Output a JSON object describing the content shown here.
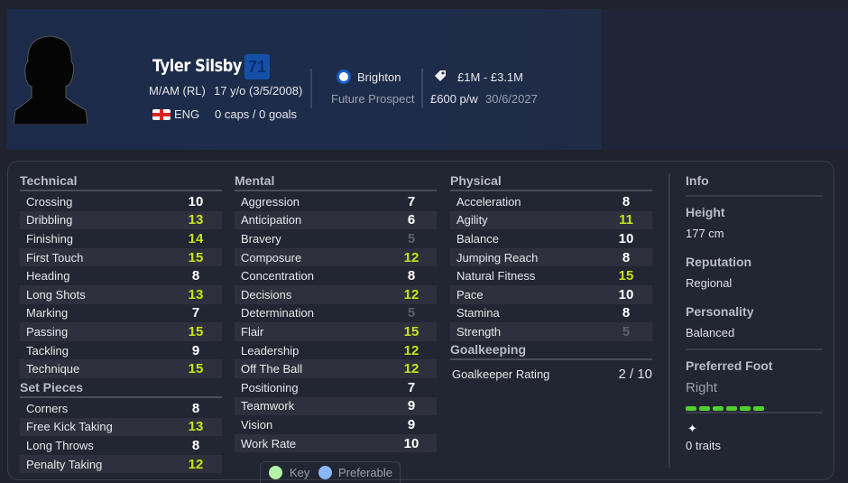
{
  "player": {
    "name": "Tyler Silsby",
    "ability": "71",
    "position": "M/AM (RL)",
    "age": "17 y/o (3/5/2008)",
    "nation": "ENG",
    "caps": "0 caps / 0 goals",
    "club": "Brighton",
    "status": "Future Prospect",
    "value": "£1M - £3.1M",
    "wage": "£600 p/w",
    "contract": "30/6/2027"
  },
  "colors": {
    "high": "#c8e21c",
    "normal": "#ffffff",
    "low": "#5c5f69",
    "foot_bar": "#4ed32c",
    "key": "#b3f0a8",
    "preferable": "#8ab8f6"
  },
  "technical": {
    "title": "Technical",
    "rows": [
      {
        "name": "Crossing",
        "value": "10",
        "tone": "no"
      },
      {
        "name": "Dribbling",
        "value": "13",
        "tone": "hi"
      },
      {
        "name": "Finishing",
        "value": "14",
        "tone": "hi"
      },
      {
        "name": "First Touch",
        "value": "15",
        "tone": "hi"
      },
      {
        "name": "Heading",
        "value": "8",
        "tone": "no"
      },
      {
        "name": "Long Shots",
        "value": "13",
        "tone": "hi"
      },
      {
        "name": "Marking",
        "value": "7",
        "tone": "no"
      },
      {
        "name": "Passing",
        "value": "15",
        "tone": "hi"
      },
      {
        "name": "Tackling",
        "value": "9",
        "tone": "no"
      },
      {
        "name": "Technique",
        "value": "15",
        "tone": "hi"
      }
    ]
  },
  "set_pieces": {
    "title": "Set Pieces",
    "rows": [
      {
        "name": "Corners",
        "value": "8",
        "tone": "no"
      },
      {
        "name": "Free Kick Taking",
        "value": "13",
        "tone": "hi"
      },
      {
        "name": "Long Throws",
        "value": "8",
        "tone": "no"
      },
      {
        "name": "Penalty Taking",
        "value": "12",
        "tone": "hi"
      }
    ]
  },
  "mental": {
    "title": "Mental",
    "rows": [
      {
        "name": "Aggression",
        "value": "7",
        "tone": "no"
      },
      {
        "name": "Anticipation",
        "value": "6",
        "tone": "no"
      },
      {
        "name": "Bravery",
        "value": "5",
        "tone": "lo"
      },
      {
        "name": "Composure",
        "value": "12",
        "tone": "hi"
      },
      {
        "name": "Concentration",
        "value": "8",
        "tone": "no"
      },
      {
        "name": "Decisions",
        "value": "12",
        "tone": "hi"
      },
      {
        "name": "Determination",
        "value": "5",
        "tone": "lo"
      },
      {
        "name": "Flair",
        "value": "15",
        "tone": "hi"
      },
      {
        "name": "Leadership",
        "value": "12",
        "tone": "hi"
      },
      {
        "name": "Off The Ball",
        "value": "12",
        "tone": "hi"
      },
      {
        "name": "Positioning",
        "value": "7",
        "tone": "no"
      },
      {
        "name": "Teamwork",
        "value": "9",
        "tone": "no"
      },
      {
        "name": "Vision",
        "value": "9",
        "tone": "no"
      },
      {
        "name": "Work Rate",
        "value": "10",
        "tone": "no"
      }
    ]
  },
  "physical": {
    "title": "Physical",
    "rows": [
      {
        "name": "Acceleration",
        "value": "8",
        "tone": "no"
      },
      {
        "name": "Agility",
        "value": "11",
        "tone": "hi"
      },
      {
        "name": "Balance",
        "value": "10",
        "tone": "no"
      },
      {
        "name": "Jumping Reach",
        "value": "8",
        "tone": "no"
      },
      {
        "name": "Natural Fitness",
        "value": "15",
        "tone": "hi"
      },
      {
        "name": "Pace",
        "value": "10",
        "tone": "no"
      },
      {
        "name": "Stamina",
        "value": "8",
        "tone": "no"
      },
      {
        "name": "Strength",
        "value": "5",
        "tone": "lo"
      }
    ]
  },
  "goalkeeping": {
    "title": "Goalkeeping",
    "label": "Goalkeeper Rating",
    "value": "2 / 10"
  },
  "info": {
    "title": "Info",
    "height_label": "Height",
    "height": "177 cm",
    "reputation_label": "Reputation",
    "reputation": "Regional",
    "personality_label": "Personality",
    "personality": "Balanced",
    "foot_label": "Preferred Foot",
    "foot": "Right",
    "foot_level": 6,
    "traits": "0 traits"
  },
  "legend": {
    "key": "Key",
    "preferable": "Preferable"
  }
}
